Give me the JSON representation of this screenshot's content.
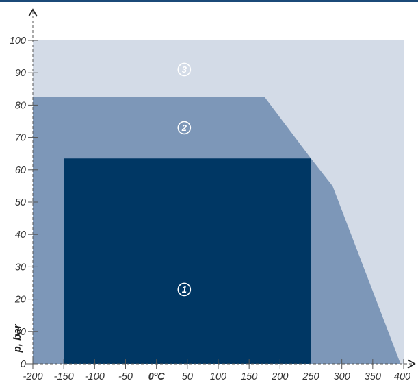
{
  "chart_data": {
    "type": "area",
    "title": "",
    "xlabel": "",
    "ylabel": "p, bar",
    "x_unit_tick": "0ºC",
    "xlim": [
      -200,
      400
    ],
    "ylim": [
      0,
      100
    ],
    "x_ticks": [
      "-200",
      "-150",
      "-100",
      "-50",
      "0ºC",
      "50",
      "100",
      "150",
      "200",
      "250",
      "300",
      "350",
      "400"
    ],
    "x_tick_values": [
      -200,
      -150,
      -100,
      -50,
      0,
      50,
      100,
      150,
      200,
      250,
      300,
      350,
      400
    ],
    "y_ticks": [
      "0",
      "10",
      "20",
      "30",
      "40",
      "50",
      "60",
      "70",
      "80",
      "90",
      "100"
    ],
    "y_tick_values": [
      0,
      10,
      20,
      30,
      40,
      50,
      60,
      70,
      80,
      90,
      100
    ],
    "grid": false,
    "regions": [
      {
        "label": "3",
        "color": "#d3dbe7",
        "label_point": [
          45,
          91
        ],
        "points": [
          [
            -200,
            0
          ],
          [
            -200,
            100
          ],
          [
            400,
            100
          ],
          [
            400,
            0
          ]
        ]
      },
      {
        "label": "2",
        "color": "#7d97b8",
        "label_point": [
          45,
          73
        ],
        "points": [
          [
            -200,
            0
          ],
          [
            -200,
            82.5
          ],
          [
            175,
            82.5
          ],
          [
            250,
            63.5
          ],
          [
            285,
            55
          ],
          [
            395,
            0
          ]
        ]
      },
      {
        "label": "1",
        "color": "#003764",
        "label_point": [
          45,
          23
        ],
        "points": [
          [
            -150,
            0
          ],
          [
            -150,
            63.5
          ],
          [
            250,
            63.5
          ],
          [
            250,
            0
          ]
        ]
      }
    ]
  }
}
